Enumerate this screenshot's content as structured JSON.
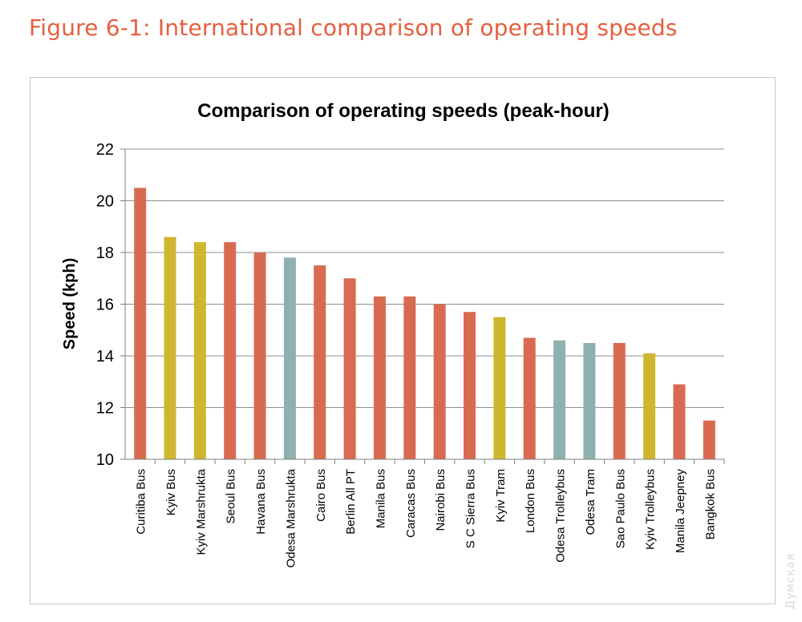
{
  "figure_caption": "Figure 6-1: International comparison of operating speeds",
  "watermark": "Думская",
  "chart_data": {
    "type": "bar",
    "title": "Comparison of operating speeds (peak-hour)",
    "xlabel": "",
    "ylabel": "Speed (kph)",
    "ylim": [
      10,
      22
    ],
    "yticks": [
      10,
      12,
      14,
      16,
      18,
      20,
      22
    ],
    "grid": true,
    "categories": [
      "Curitiba Bus",
      "Kyiv Bus",
      "Kyiv Marshrukta",
      "Seoul Bus",
      "Havana Bus",
      "Odesa Marshrukta",
      "Cairo Bus",
      "Berlin All PT",
      "Manila Bus",
      "Caracas Bus",
      "Nairobi Bus",
      "S C Sierra Bus",
      "Kyiv Tram",
      "London Bus",
      "Odesa Trolleybus",
      "Odesa Tram",
      "Sao Paulo Bus",
      "Kyiv Trolleybus",
      "Manila Jeepney",
      "Bangkok Bus"
    ],
    "values": [
      20.5,
      18.6,
      18.4,
      18.4,
      18.0,
      17.8,
      17.5,
      17.0,
      16.3,
      16.3,
      16.0,
      15.7,
      15.5,
      14.7,
      14.6,
      14.5,
      14.5,
      14.1,
      12.9,
      11.5
    ],
    "color_groups": [
      "other",
      "kyiv",
      "kyiv",
      "other",
      "other",
      "odesa",
      "other",
      "other",
      "other",
      "other",
      "other",
      "other",
      "kyiv",
      "other",
      "odesa",
      "odesa",
      "other",
      "kyiv",
      "other",
      "other"
    ]
  },
  "colors": {
    "other": "#d96a52",
    "kyiv": "#cdb72e",
    "odesa": "#8fb0b0",
    "grid": "#8c8c8c",
    "axis": "#7f7f7f",
    "caption": "#e4603f"
  }
}
